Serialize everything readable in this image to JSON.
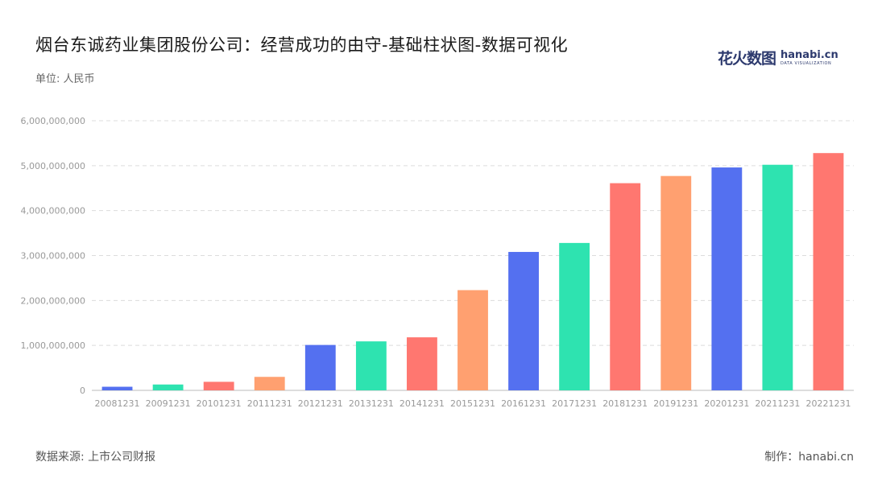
{
  "title": "烟台东诚药业集团股份公司：经营成功的由守-基础柱状图-数据可视化",
  "unit_label": "单位: 人民币",
  "source_label": "数据来源: 上市公司财报",
  "credit_label": "制作：hanabi.cn",
  "logo": {
    "cn": "花火数图",
    "en": "hanabi.cn",
    "sub": "DATA VISUALIZATION"
  },
  "colors": {
    "palette": [
      "#5470f0",
      "#2ee3b0",
      "#ff7770",
      "#ffa070"
    ],
    "grid": "#dcdcdc",
    "axis_text": "#999999"
  },
  "chart_data": {
    "type": "bar",
    "categories": [
      "20081231",
      "20091231",
      "20101231",
      "20111231",
      "20121231",
      "20131231",
      "20141231",
      "20151231",
      "20161231",
      "20171231",
      "20181231",
      "20191231",
      "20201231",
      "20211231",
      "20221231"
    ],
    "values": [
      80000000,
      130000000,
      190000000,
      300000000,
      1010000000,
      1090000000,
      1180000000,
      2230000000,
      3080000000,
      3280000000,
      4610000000,
      4770000000,
      4960000000,
      5020000000,
      5280000000
    ],
    "ylim": [
      0,
      6000000000
    ],
    "yticks": [
      0,
      1000000000,
      2000000000,
      3000000000,
      4000000000,
      5000000000,
      6000000000
    ],
    "ytick_labels": [
      "0",
      "1,000,000,000",
      "2,000,000,000",
      "3,000,000,000",
      "4,000,000,000",
      "5,000,000,000",
      "6,000,000,000"
    ],
    "grid": true
  }
}
